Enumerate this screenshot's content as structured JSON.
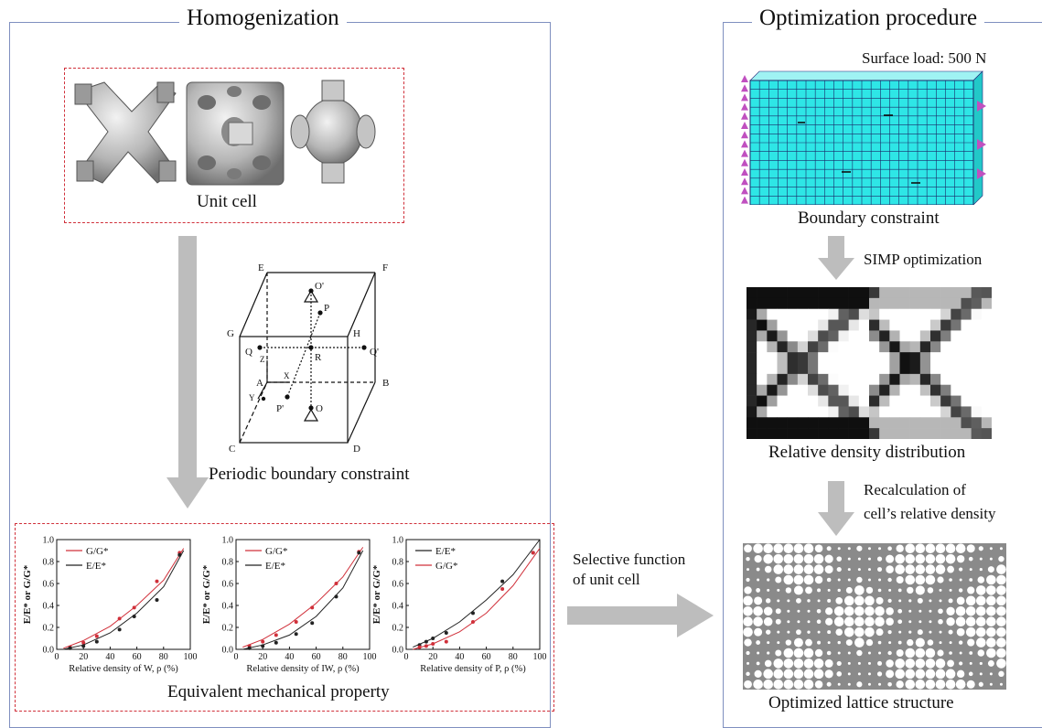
{
  "left_panel": {
    "title": "Homogenization",
    "unit_cell_label": "Unit cell",
    "periodic_label": "Periodic boundary constraint",
    "cube_labels": {
      "E": "E",
      "F": "F",
      "G": "G",
      "H": "H",
      "A": "A",
      "B": "B",
      "C": "C",
      "D": "D",
      "O_prime": "O'",
      "O": "O",
      "P": "P",
      "P_prime": "P'",
      "Q": "Q",
      "Q_prime": "Q'",
      "R": "R",
      "X": "X",
      "Y": "Y",
      "Z": "Z"
    },
    "equivalent_label": "Equivalent mechanical property"
  },
  "middle": {
    "selective_line1": "Selective function",
    "selective_line2": "of unit cell"
  },
  "right_panel": {
    "title": "Optimization procedure",
    "surface_load": "Surface load: 500 N",
    "boundary_label": "Boundary constraint",
    "simp_label": "SIMP optimization",
    "density_label": "Relative density distribution",
    "recalc_line1": "Recalculation of",
    "recalc_line2": "cell’s relative density",
    "optimized_label": "Optimized lattice structure"
  },
  "colors": {
    "panel_border": "#7f8fbf",
    "dash_red": "#d0303a",
    "arrow_gray": "#bdbdbd",
    "mesh_cyan": "#2ee6e6",
    "support_magenta": "#c050c0"
  },
  "chart_data": [
    {
      "type": "scatter",
      "xlabel": "Relative density of W, ρ (%)",
      "ylabel": "E/E* or G/G*",
      "xlim": [
        0,
        100
      ],
      "ylim": [
        0,
        1.0
      ],
      "xticks": [
        "0",
        "20",
        "40",
        "60",
        "80",
        "100"
      ],
      "yticks": [
        "0.0",
        "0.2",
        "0.4",
        "0.6",
        "0.8",
        "1.0"
      ],
      "legend_position": "top-left",
      "series": [
        {
          "name": "G/G*",
          "color": "#d0303a",
          "points": [
            [
              10,
              0.02
            ],
            [
              20,
              0.06
            ],
            [
              30,
              0.12
            ],
            [
              47,
              0.28
            ],
            [
              58,
              0.38
            ],
            [
              75,
              0.62
            ],
            [
              92,
              0.88
            ]
          ],
          "curve": [
            [
              5,
              0.01
            ],
            [
              20,
              0.08
            ],
            [
              40,
              0.21
            ],
            [
              60,
              0.4
            ],
            [
              80,
              0.63
            ],
            [
              95,
              0.92
            ]
          ]
        },
        {
          "name": "E/E*",
          "color": "#222222",
          "points": [
            [
              10,
              0.01
            ],
            [
              20,
              0.03
            ],
            [
              30,
              0.07
            ],
            [
              47,
              0.18
            ],
            [
              58,
              0.3
            ],
            [
              75,
              0.45
            ],
            [
              92,
              0.86
            ]
          ],
          "curve": [
            [
              5,
              0.0
            ],
            [
              20,
              0.04
            ],
            [
              40,
              0.15
            ],
            [
              60,
              0.33
            ],
            [
              80,
              0.57
            ],
            [
              95,
              0.9
            ]
          ]
        }
      ]
    },
    {
      "type": "scatter",
      "xlabel": "Relative density of IW, ρ (%)",
      "ylabel": "E/E* or G/G*",
      "xlim": [
        0,
        100
      ],
      "ylim": [
        0,
        1.0
      ],
      "xticks": [
        "0",
        "20",
        "40",
        "60",
        "80",
        "100"
      ],
      "yticks": [
        "0.0",
        "0.2",
        "0.4",
        "0.6",
        "0.8",
        "1.0"
      ],
      "legend_position": "top-left",
      "series": [
        {
          "name": "G/G*",
          "color": "#d0303a",
          "points": [
            [
              10,
              0.03
            ],
            [
              20,
              0.07
            ],
            [
              30,
              0.13
            ],
            [
              45,
              0.25
            ],
            [
              57,
              0.38
            ],
            [
              75,
              0.6
            ],
            [
              92,
              0.89
            ]
          ],
          "curve": [
            [
              5,
              0.02
            ],
            [
              20,
              0.09
            ],
            [
              40,
              0.23
            ],
            [
              60,
              0.42
            ],
            [
              80,
              0.66
            ],
            [
              95,
              0.93
            ]
          ]
        },
        {
          "name": "E/E*",
          "color": "#222222",
          "points": [
            [
              10,
              0.01
            ],
            [
              20,
              0.03
            ],
            [
              30,
              0.06
            ],
            [
              45,
              0.14
            ],
            [
              57,
              0.24
            ],
            [
              75,
              0.48
            ],
            [
              92,
              0.88
            ]
          ],
          "curve": [
            [
              5,
              0.0
            ],
            [
              20,
              0.04
            ],
            [
              40,
              0.13
            ],
            [
              60,
              0.3
            ],
            [
              80,
              0.56
            ],
            [
              95,
              0.9
            ]
          ]
        }
      ]
    },
    {
      "type": "scatter",
      "xlabel": "Relative density of P, ρ (%)",
      "ylabel": "E/E* or G/G*",
      "xlim": [
        0,
        100
      ],
      "ylim": [
        0,
        1.0
      ],
      "xticks": [
        "0",
        "20",
        "40",
        "60",
        "80",
        "100"
      ],
      "yticks": [
        "0.0",
        "0.2",
        "0.4",
        "0.6",
        "0.8",
        "1.0"
      ],
      "legend_position": "top-left",
      "series": [
        {
          "name": "E/E*",
          "color": "#222222",
          "points": [
            [
              10,
              0.04
            ],
            [
              15,
              0.07
            ],
            [
              20,
              0.1
            ],
            [
              30,
              0.15
            ],
            [
              50,
              0.33
            ],
            [
              72,
              0.62
            ],
            [
              95,
              0.88
            ]
          ],
          "curve": [
            [
              5,
              0.02
            ],
            [
              20,
              0.1
            ],
            [
              40,
              0.25
            ],
            [
              60,
              0.45
            ],
            [
              80,
              0.68
            ],
            [
              100,
              1.0
            ]
          ]
        },
        {
          "name": "G/G*",
          "color": "#d0303a",
          "points": [
            [
              10,
              0.02
            ],
            [
              15,
              0.03
            ],
            [
              20,
              0.05
            ],
            [
              30,
              0.07
            ],
            [
              50,
              0.25
            ],
            [
              72,
              0.55
            ],
            [
              95,
              0.88
            ]
          ],
          "curve": [
            [
              5,
              0.0
            ],
            [
              20,
              0.05
            ],
            [
              40,
              0.16
            ],
            [
              60,
              0.33
            ],
            [
              80,
              0.58
            ],
            [
              100,
              0.92
            ]
          ]
        }
      ]
    }
  ]
}
